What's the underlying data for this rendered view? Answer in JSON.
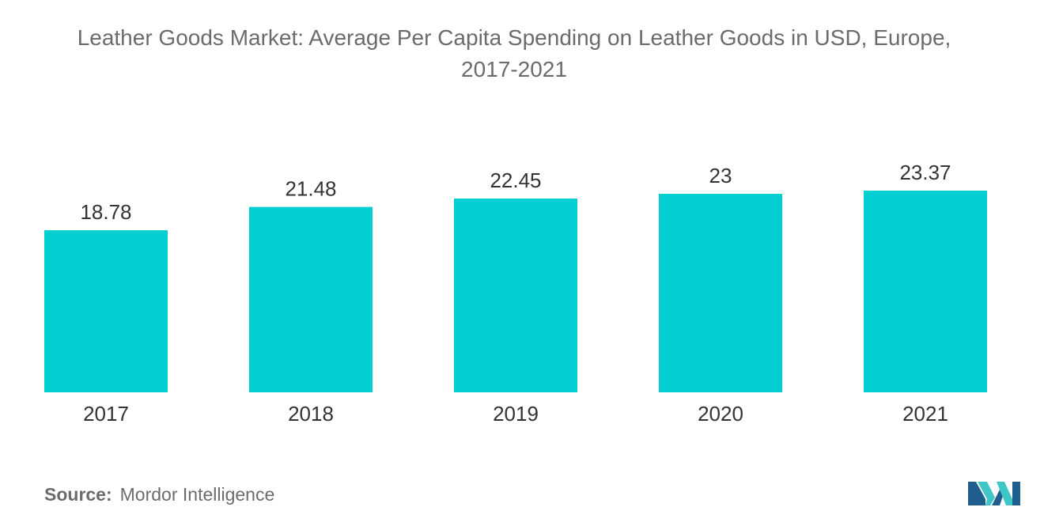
{
  "chart_data": {
    "type": "bar",
    "title_line1": "Leather Goods Market: Average Per Capita Spending on Leather Goods in USD, Europe,",
    "title_line2": "2017-2021",
    "categories": [
      "2017",
      "2018",
      "2019",
      "2020",
      "2021"
    ],
    "values": [
      18.78,
      21.48,
      22.45,
      23,
      23.37
    ],
    "value_labels": [
      "18.78",
      "21.48",
      "22.45",
      "23",
      "23.37"
    ],
    "xlabel": "",
    "ylabel": "",
    "ylim": [
      0,
      23.37
    ],
    "grid": false,
    "legend": "none",
    "bar_color": "#00CED1"
  },
  "source": {
    "label": "Source:",
    "text": "Mordor Intelligence"
  },
  "colors": {
    "title": "#6b6b6b",
    "axis_text": "#333333",
    "logo_dark": "#1e5f8f",
    "logo_light": "#3fc6c6"
  },
  "logo": {
    "icon": "mordor-intelligence-logo-icon"
  }
}
